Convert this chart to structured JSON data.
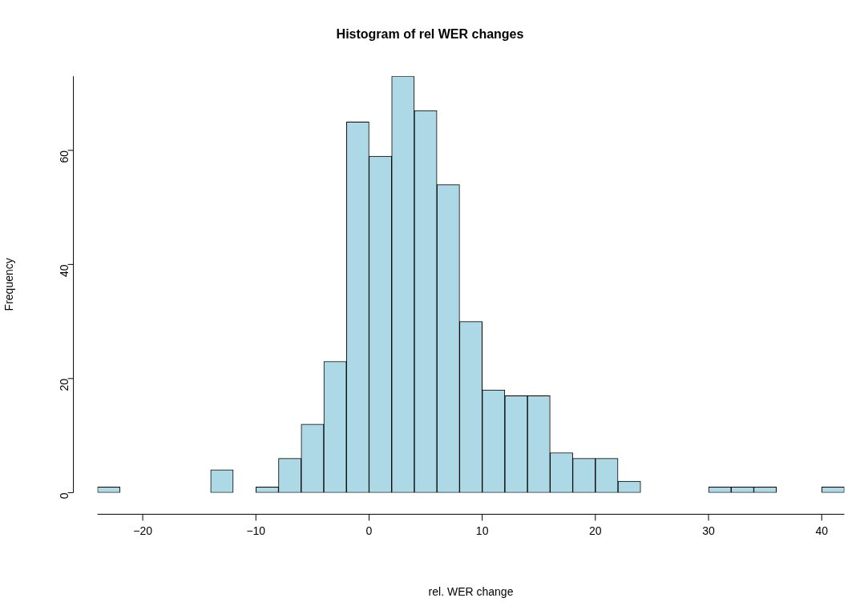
{
  "chart_data": {
    "type": "histogram",
    "title": "Histogram of rel WER changes",
    "xlabel": "rel. WER change",
    "ylabel": "Frequency",
    "bins": [
      -24,
      -22,
      -20,
      -18,
      -16,
      -14,
      -12,
      -10,
      -8,
      -6,
      -4,
      -2,
      0,
      2,
      4,
      6,
      8,
      10,
      12,
      14,
      16,
      18,
      20,
      22,
      24,
      26,
      28,
      30,
      32,
      34,
      36,
      38,
      40,
      42
    ],
    "values": [
      1,
      0,
      0,
      0,
      0,
      4,
      0,
      1,
      6,
      12,
      23,
      65,
      59,
      73,
      67,
      54,
      30,
      18,
      17,
      17,
      7,
      6,
      6,
      2,
      0,
      0,
      0,
      1,
      1,
      1,
      0,
      0,
      1
    ],
    "color": "#add8e6",
    "xlim": [
      -24,
      42
    ],
    "ylim": [
      0,
      73
    ],
    "xticks": [
      -20,
      -10,
      0,
      10,
      20,
      30,
      40
    ],
    "yticks": [
      0,
      20,
      40,
      60
    ],
    "grid": false,
    "legend": false
  }
}
